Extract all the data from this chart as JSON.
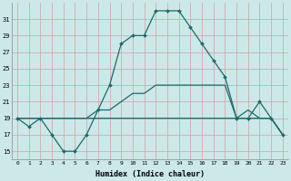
{
  "xlabel": "Humidex (Indice chaleur)",
  "background_color": "#cce8e8",
  "grid_color": "#aacccc",
  "line_color": "#1a6b6b",
  "xlim": [
    -0.5,
    23.5
  ],
  "ylim": [
    14,
    33
  ],
  "xticks": [
    0,
    1,
    2,
    3,
    4,
    5,
    6,
    7,
    8,
    9,
    10,
    11,
    12,
    13,
    14,
    15,
    16,
    17,
    18,
    19,
    20,
    21,
    22,
    23
  ],
  "yticks": [
    15,
    17,
    19,
    21,
    23,
    25,
    27,
    29,
    31
  ],
  "line1_x": [
    0,
    1,
    2,
    3,
    4,
    5,
    6,
    7,
    8,
    9,
    10,
    11,
    12,
    13,
    14,
    15,
    16,
    17,
    18,
    19,
    20,
    21,
    22,
    23
  ],
  "line1_y": [
    19,
    18,
    19,
    17,
    15,
    15,
    17,
    20,
    23,
    28,
    29,
    29,
    32,
    32,
    32,
    30,
    28,
    26,
    24,
    19,
    19,
    21,
    19,
    17
  ],
  "line2_x": [
    0,
    1,
    2,
    3,
    4,
    5,
    6,
    7,
    8,
    9,
    10,
    11,
    12,
    13,
    14,
    15,
    16,
    17,
    18,
    19,
    20,
    21,
    22,
    23
  ],
  "line2_y": [
    19,
    19,
    19,
    19,
    19,
    19,
    19,
    19,
    19,
    19,
    19,
    19,
    19,
    19,
    19,
    19,
    19,
    19,
    19,
    19,
    19,
    19,
    19,
    17
  ],
  "line3_x": [
    0,
    1,
    2,
    3,
    4,
    5,
    6,
    7,
    8,
    9,
    10,
    11,
    12,
    13,
    14,
    15,
    16,
    17,
    18,
    19,
    20,
    21,
    22,
    23
  ],
  "line3_y": [
    19,
    19,
    19,
    19,
    19,
    19,
    19,
    20,
    20,
    21,
    22,
    22,
    23,
    23,
    23,
    23,
    23,
    23,
    23,
    19,
    20,
    19,
    19,
    17
  ]
}
